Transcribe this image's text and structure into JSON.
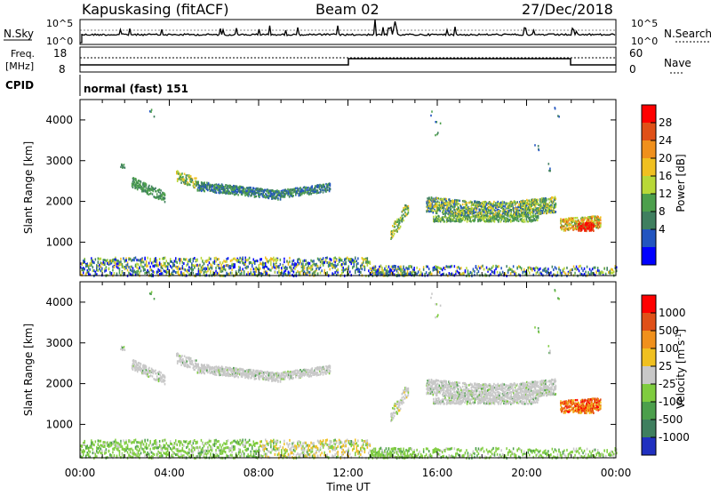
{
  "header": {
    "station": "Kapuskasing (fitACF)",
    "beam": "Beam 02",
    "date": "27/Dec/2018"
  },
  "top_panels": {
    "nsky_label": "N.Sky",
    "nsky_ticks": [
      "10^5",
      "10^0"
    ],
    "nsearch_label": "N.Search",
    "nsearch_ticks": [
      "10^5",
      "10^0"
    ],
    "freq_label_1": "Freq.",
    "freq_label_2": "[MHz]",
    "freq_ticks": [
      "18",
      "8"
    ],
    "nave_label": "Nave",
    "nave_ticks": [
      "60",
      "0"
    ],
    "cpid_label": "CPID",
    "cpid_value": "normal (fast) 151"
  },
  "chart_data": [
    {
      "type": "heatmap",
      "name": "power",
      "xlabel": "",
      "ylabel": "Slant Range [km]",
      "x_ticks": [
        "00:00",
        "04:00",
        "08:00",
        "12:00",
        "16:00",
        "20:00",
        "00:00"
      ],
      "y_ticks": [
        "1000",
        "2000",
        "3000",
        "4000"
      ],
      "ylim": [
        180,
        4500
      ],
      "xlim_hours": [
        0,
        24
      ],
      "colorbar_label": "Power [dB]",
      "colorbar_ticks": [
        "4",
        "8",
        "12",
        "16",
        "20",
        "24",
        "28"
      ],
      "colorbar_colors": [
        "#0000ff",
        "#2255c0",
        "#3f7f5f",
        "#4c9f4c",
        "#b8d838",
        "#f0c020",
        "#f0901c",
        "#e05018",
        "#ff0000"
      ]
    },
    {
      "type": "heatmap",
      "name": "velocity",
      "xlabel": "Time UT",
      "ylabel": "Slant Range [km]",
      "x_ticks": [
        "00:00",
        "04:00",
        "08:00",
        "12:00",
        "16:00",
        "20:00",
        "00:00"
      ],
      "y_ticks": [
        "1000",
        "2000",
        "3000",
        "4000"
      ],
      "ylim": [
        180,
        4500
      ],
      "xlim_hours": [
        0,
        24
      ],
      "colorbar_label": "Velocity [m s^-1]",
      "colorbar_ticks": [
        "1000",
        "500",
        "100",
        "25",
        "-25",
        "-100",
        "-500",
        "-1000"
      ],
      "colorbar_colors": [
        "#2030c0",
        "#3f7f5f",
        "#4c9f4c",
        "#7fcc3f",
        "#c8c8c8",
        "#f0c020",
        "#f0901c",
        "#e05018",
        "#ff0000"
      ]
    }
  ],
  "colors": {
    "ground_scatter": "#c8c8c8",
    "nodata": "#ffffff"
  }
}
